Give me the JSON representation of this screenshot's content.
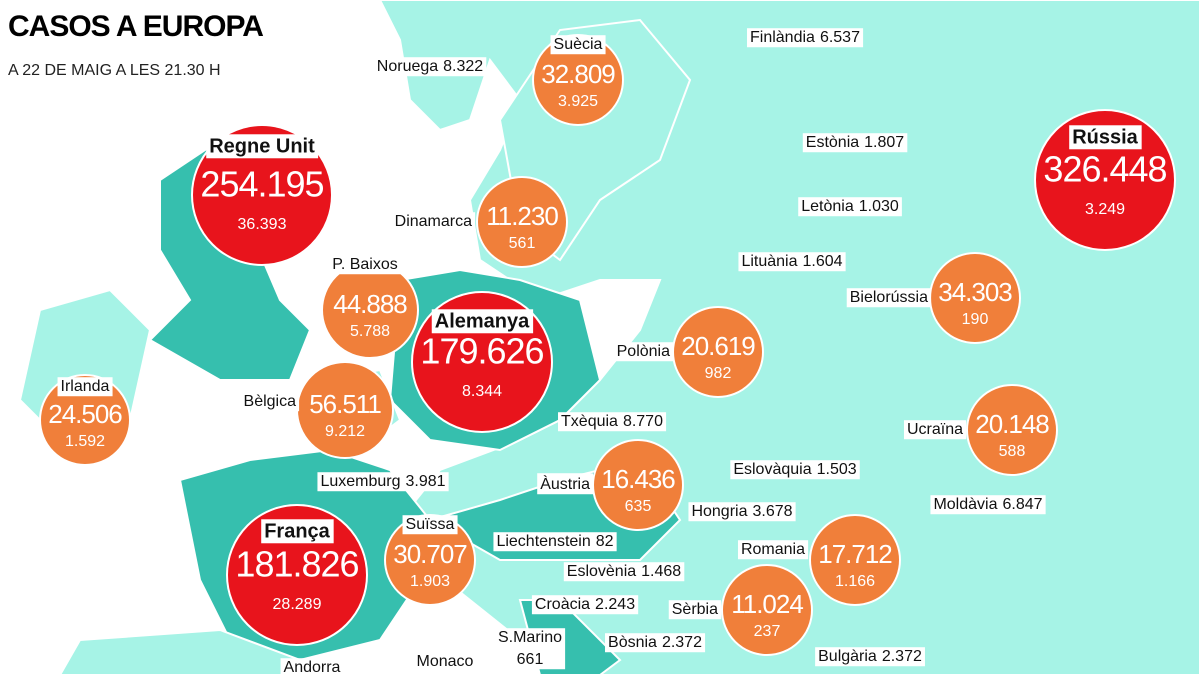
{
  "header": {
    "title": "CASOS A EUROPA",
    "subtitle": "A 22 DE MAIG A LES 21.30 H"
  },
  "bubbles": [
    {
      "name": "Suècia",
      "cases": "32.809",
      "deaths": "3.925",
      "color": "#f07f3a"
    },
    {
      "name": "Regne Unit",
      "cases": "254.195",
      "deaths": "36.393",
      "color": "#e8141c"
    },
    {
      "name": "Rússia",
      "cases": "326.448",
      "deaths": "3.249",
      "color": "#e8141c"
    },
    {
      "name": "Dinamarca",
      "cases": "11.230",
      "deaths": "561",
      "color": "#f07f3a"
    },
    {
      "name": "P. Baixos",
      "cases": "44.888",
      "deaths": "5.788",
      "color": "#f07f3a"
    },
    {
      "name": "Alemanya",
      "cases": "179.626",
      "deaths": "8.344",
      "color": "#e8141c"
    },
    {
      "name": "Irlanda",
      "cases": "24.506",
      "deaths": "1.592",
      "color": "#f07f3a"
    },
    {
      "name": "Bèlgica",
      "cases": "56.511",
      "deaths": "9.212",
      "color": "#f07f3a"
    },
    {
      "name": "Polònia",
      "cases": "20.619",
      "deaths": "982",
      "color": "#f07f3a"
    },
    {
      "name": "Bielorússia",
      "cases": "34.303",
      "deaths": "190",
      "color": "#f07f3a"
    },
    {
      "name": "Ucraïna",
      "cases": "20.148",
      "deaths": "588",
      "color": "#f07f3a"
    },
    {
      "name": "Àustria",
      "cases": "16.436",
      "deaths": "635",
      "color": "#f07f3a"
    },
    {
      "name": "França",
      "cases": "181.826",
      "deaths": "28.289",
      "color": "#e8141c"
    },
    {
      "name": "Suïssa",
      "cases": "30.707",
      "deaths": "1.903",
      "color": "#f07f3a"
    },
    {
      "name": "Romania",
      "cases": "17.712",
      "deaths": "1.166",
      "color": "#f07f3a"
    },
    {
      "name": "Sèrbia",
      "cases": "11.024",
      "deaths": "237",
      "color": "#f07f3a"
    }
  ],
  "labels": [
    {
      "name": "Noruega",
      "cases": "8.322"
    },
    {
      "name": "Finlàndia",
      "cases": "6.537"
    },
    {
      "name": "Estònia",
      "cases": "1.807"
    },
    {
      "name": "Letònia",
      "cases": "1.030"
    },
    {
      "name": "Lituània",
      "cases": "1.604"
    },
    {
      "name": "Txèquia",
      "cases": "8.770"
    },
    {
      "name": "Eslovàquia",
      "cases": "1.503"
    },
    {
      "name": "Luxemburg",
      "cases": "3.981"
    },
    {
      "name": "Hongria",
      "cases": "3.678"
    },
    {
      "name": "Moldàvia",
      "cases": "6.847"
    },
    {
      "name": "Liechtenstein",
      "cases": "82"
    },
    {
      "name": "Eslovènia",
      "cases": "1.468"
    },
    {
      "name": "Croàcia",
      "cases": "2.243"
    },
    {
      "name": "S.Marino",
      "cases": "661"
    },
    {
      "name": "Bòsnia",
      "cases": "2.372"
    },
    {
      "name": "Bulgària",
      "cases": "2.372"
    },
    {
      "name": "Monaco"
    },
    {
      "name": "Andorra"
    }
  ]
}
